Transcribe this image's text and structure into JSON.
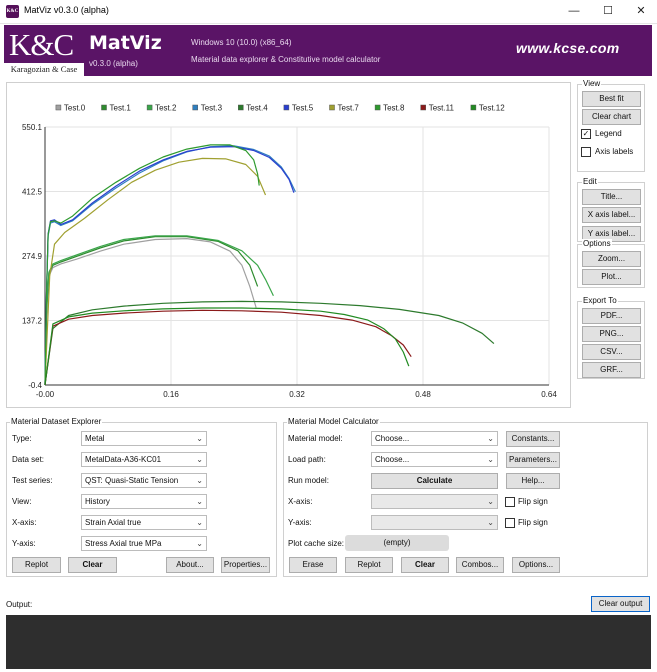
{
  "window": {
    "title": "MatViz v0.3.0 (alpha)",
    "icon_text": "K&C",
    "minimize": "—",
    "maximize": "☐",
    "close": "✕"
  },
  "banner": {
    "logo_text": "K&C",
    "logo_sub": "Karagozian & Case",
    "app_name": "MatViz",
    "version": "v0.3.0 (alpha)",
    "os_info": "Windows 10 (10.0) (x86_64)",
    "description": "Material data explorer & Constitutive model calculator",
    "url": "www.kcse.com"
  },
  "chart_data": {
    "type": "line",
    "title": "",
    "xlabel": "",
    "ylabel": "",
    "xlim": [
      0.0,
      0.64
    ],
    "ylim": [
      -0.4,
      550.1
    ],
    "xticks": [
      "-0.00",
      "0.16",
      "0.32",
      "0.48",
      "0.64"
    ],
    "yticks": [
      "-0.4",
      "137.2",
      "274.9",
      "412.5",
      "550.1"
    ],
    "grid": true,
    "legend_position": "top",
    "series": [
      {
        "name": "Test.0",
        "color": "#a0a0a0",
        "x": [
          0,
          0.002,
          0.005,
          0.01,
          0.02,
          0.04,
          0.07,
          0.1,
          0.14,
          0.18,
          0.21,
          0.235,
          0.25,
          0.26,
          0.268
        ],
        "y": [
          0,
          150,
          232,
          250,
          258,
          268,
          285,
          300,
          310,
          312,
          305,
          285,
          255,
          210,
          165
        ]
      },
      {
        "name": "Test.1",
        "color": "#2e8b2e",
        "x": [
          0,
          0.002,
          0.005,
          0.01,
          0.02,
          0.04,
          0.07,
          0.1,
          0.14,
          0.18,
          0.22,
          0.245,
          0.26,
          0.27
        ],
        "y": [
          0,
          160,
          238,
          255,
          262,
          274,
          292,
          307,
          316,
          316,
          306,
          286,
          255,
          210
        ]
      },
      {
        "name": "Test.2",
        "color": "#3aa64a",
        "x": [
          0,
          0.002,
          0.005,
          0.01,
          0.02,
          0.04,
          0.07,
          0.1,
          0.14,
          0.18,
          0.22,
          0.25,
          0.27,
          0.28,
          0.29
        ],
        "y": [
          0,
          165,
          240,
          258,
          265,
          277,
          295,
          310,
          318,
          318,
          308,
          286,
          255,
          225,
          190
        ]
      },
      {
        "name": "Test.3",
        "color": "#2f7fbf",
        "x": [
          0,
          0.002,
          0.004,
          0.007,
          0.012,
          0.02,
          0.035,
          0.06,
          0.09,
          0.12,
          0.15,
          0.18,
          0.21,
          0.24,
          0.265,
          0.285,
          0.3,
          0.31,
          0.318
        ],
        "y": [
          0,
          200,
          318,
          345,
          348,
          340,
          350,
          385,
          420,
          452,
          478,
          497,
          508,
          510,
          502,
          488,
          465,
          440,
          412
        ]
      },
      {
        "name": "Test.4",
        "color": "#2d7a2d",
        "x": [
          0,
          0.01,
          0.03,
          0.06,
          0.1,
          0.15,
          0.2,
          0.25,
          0.3,
          0.35,
          0.4,
          0.45,
          0.5,
          0.53,
          0.555,
          0.57
        ],
        "y": [
          0,
          120,
          148,
          160,
          168,
          174,
          177,
          178,
          177,
          174,
          169,
          161,
          148,
          132,
          110,
          88
        ]
      },
      {
        "name": "Test.5",
        "color": "#2a3fd0",
        "x": [
          0,
          0.002,
          0.004,
          0.007,
          0.012,
          0.02,
          0.035,
          0.06,
          0.09,
          0.12,
          0.15,
          0.18,
          0.21,
          0.24,
          0.265,
          0.285,
          0.3,
          0.31,
          0.316
        ],
        "y": [
          0,
          205,
          322,
          350,
          352,
          342,
          352,
          388,
          424,
          456,
          480,
          498,
          507,
          508,
          500,
          485,
          462,
          438,
          410
        ]
      },
      {
        "name": "Test.7",
        "color": "#a0a030",
        "x": [
          0,
          0.003,
          0.006,
          0.012,
          0.025,
          0.05,
          0.08,
          0.11,
          0.14,
          0.17,
          0.2,
          0.23,
          0.255,
          0.27,
          0.28
        ],
        "y": [
          0,
          120,
          232,
          300,
          325,
          355,
          395,
          432,
          458,
          475,
          483,
          482,
          470,
          445,
          405
        ]
      },
      {
        "name": "Test.8",
        "color": "#2e9a2e",
        "x": [
          0,
          0.002,
          0.004,
          0.007,
          0.012,
          0.02,
          0.035,
          0.06,
          0.09,
          0.12,
          0.15,
          0.18,
          0.21,
          0.235,
          0.255,
          0.265,
          0.27,
          0.272
        ],
        "y": [
          0,
          200,
          320,
          348,
          350,
          345,
          360,
          398,
          432,
          462,
          486,
          503,
          512,
          512,
          500,
          480,
          450,
          425
        ]
      },
      {
        "name": "Test.11",
        "color": "#8b1a1a",
        "x": [
          0,
          0.01,
          0.03,
          0.06,
          0.1,
          0.15,
          0.2,
          0.25,
          0.3,
          0.35,
          0.39,
          0.42,
          0.44,
          0.455,
          0.465
        ],
        "y": [
          0,
          125,
          140,
          148,
          153,
          157,
          159,
          158,
          155,
          148,
          138,
          124,
          105,
          85,
          60
        ]
      },
      {
        "name": "Test.12",
        "color": "#228b22",
        "x": [
          0,
          0.01,
          0.03,
          0.06,
          0.1,
          0.15,
          0.2,
          0.25,
          0.3,
          0.35,
          0.38,
          0.41,
          0.43,
          0.445,
          0.455,
          0.462
        ],
        "y": [
          0,
          130,
          145,
          153,
          158,
          162,
          164,
          164,
          162,
          157,
          150,
          138,
          120,
          98,
          70,
          40
        ]
      }
    ]
  },
  "right_panel": {
    "view": {
      "title": "View",
      "best_fit": "Best fit",
      "clear_chart": "Clear chart",
      "legend_label": "Legend",
      "legend_checked": true,
      "axis_labels_label": "Axis labels",
      "axis_labels_checked": false
    },
    "edit": {
      "title": "Edit",
      "title_btn": "Title...",
      "x_axis_btn": "X axis label...",
      "y_axis_btn": "Y axis label..."
    },
    "options": {
      "title": "Options",
      "zoom_btn": "Zoom...",
      "plot_btn": "Plot..."
    },
    "export": {
      "title": "Export To",
      "pdf": "PDF...",
      "png": "PNG...",
      "csv": "CSV...",
      "grf": "GRF..."
    }
  },
  "explorer": {
    "title": "Material Dataset Explorer",
    "rows": [
      {
        "label": "Type:",
        "value": "Metal"
      },
      {
        "label": "Data set:",
        "value": "MetalData-A36-KC01"
      },
      {
        "label": "Test series:",
        "value": "QST: Quasi-Static Tension"
      },
      {
        "label": "View:",
        "value": "History"
      },
      {
        "label": "X-axis:",
        "value": "Strain Axial true"
      },
      {
        "label": "Y-axis:",
        "value": "Stress Axial true MPa"
      }
    ],
    "replot": "Replot",
    "clear": "Clear",
    "about": "About...",
    "properties": "Properties..."
  },
  "calculator": {
    "title": "Material Model Calculator",
    "material_model_label": "Material model:",
    "material_model_value": "Choose...",
    "constants_btn": "Constants...",
    "load_path_label": "Load path:",
    "load_path_value": "Choose...",
    "parameters_btn": "Parameters...",
    "run_model_label": "Run model:",
    "calculate_btn": "Calculate",
    "help_btn": "Help...",
    "x_axis_label": "X-axis:",
    "x_axis_value": "",
    "flip_x": "Flip sign",
    "y_axis_label": "Y-axis:",
    "y_axis_value": "",
    "flip_y": "Flip sign",
    "cache_label": "Plot cache size:",
    "cache_value": "(empty)",
    "erase": "Erase",
    "replot": "Replot",
    "clear": "Clear",
    "combos": "Combos...",
    "options": "Options..."
  },
  "output": {
    "label": "Output:",
    "clear_btn": "Clear output"
  }
}
